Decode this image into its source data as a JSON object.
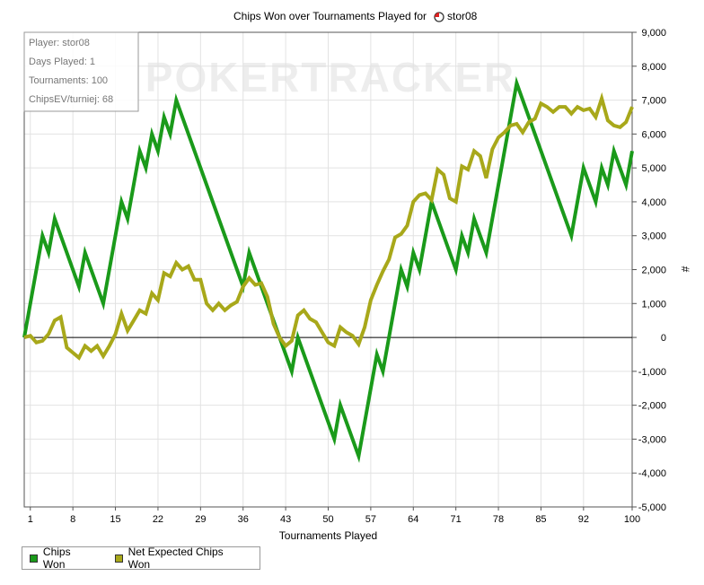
{
  "chart_data": {
    "type": "line",
    "title": "Chips Won over Tournaments Played for",
    "title_player": "stor08",
    "title_icon": "poker-site-icon",
    "xlabel": "Tournaments Played",
    "ylabel": "#",
    "watermark": "POKERTRACKER",
    "x_ticks": [
      1,
      8,
      15,
      22,
      29,
      36,
      43,
      50,
      57,
      64,
      71,
      78,
      85,
      92,
      100
    ],
    "x_tick_labels": [
      "1",
      "8",
      "15",
      "22",
      "29",
      "36",
      "43",
      "50",
      "57",
      "64",
      "71",
      "78",
      "85",
      "92",
      "100"
    ],
    "xlim": [
      0,
      100
    ],
    "ylim": [
      -5000,
      9000
    ],
    "y_ticks": [
      -5000,
      -4000,
      -3000,
      -2000,
      -1000,
      0,
      1000,
      2000,
      3000,
      4000,
      5000,
      6000,
      7000,
      8000,
      9000
    ],
    "y_tick_labels": [
      "-5,000",
      "-4,000",
      "-3,000",
      "-2,000",
      "-1,000",
      "0",
      "1,000",
      "2,000",
      "3,000",
      "4,000",
      "5,000",
      "6,000",
      "7,000",
      "8,000",
      "9,000"
    ],
    "info_box": [
      "Player: stor08",
      "Days Played: 1",
      "Tournaments: 100",
      "ChipsEV/turniej: 68"
    ],
    "legend_position": "bottom-left",
    "colors": {
      "chips_won": "#1a9a1a",
      "net_expected": "#a8a81a",
      "axis": "#000000",
      "grid": "#e2e2e2"
    },
    "series": [
      {
        "name": "Chips Won",
        "color": "#1a9a1a",
        "points": [
          [
            0,
            0
          ],
          [
            3,
            3000
          ],
          [
            4,
            2500
          ],
          [
            5,
            3500
          ],
          [
            9,
            1500
          ],
          [
            10,
            2500
          ],
          [
            13,
            1000
          ],
          [
            16,
            4000
          ],
          [
            17,
            3500
          ],
          [
            19,
            5500
          ],
          [
            20,
            5000
          ],
          [
            21,
            6000
          ],
          [
            22,
            5500
          ],
          [
            23,
            6500
          ],
          [
            24,
            6000
          ],
          [
            25,
            7000
          ],
          [
            36,
            1500
          ],
          [
            37,
            2500
          ],
          [
            44,
            -1000
          ],
          [
            45,
            0
          ],
          [
            51,
            -3000
          ],
          [
            52,
            -2000
          ],
          [
            55,
            -3500
          ],
          [
            58,
            -500
          ],
          [
            59,
            -1000
          ],
          [
            62,
            2000
          ],
          [
            63,
            1500
          ],
          [
            64,
            2500
          ],
          [
            65,
            2000
          ],
          [
            67,
            4000
          ],
          [
            71,
            2000
          ],
          [
            72,
            3000
          ],
          [
            73,
            2500
          ],
          [
            74,
            3500
          ],
          [
            76,
            2500
          ],
          [
            81,
            7500
          ],
          [
            90,
            3000
          ],
          [
            92,
            5000
          ],
          [
            94,
            4000
          ],
          [
            95,
            5000
          ],
          [
            96,
            4500
          ],
          [
            97,
            5500
          ],
          [
            99,
            4500
          ],
          [
            100,
            5500
          ]
        ]
      },
      {
        "name": "Net Expected Chips Won",
        "color": "#a8a81a",
        "points": [
          [
            0,
            0
          ],
          [
            1,
            50
          ],
          [
            2,
            -150
          ],
          [
            3,
            -100
          ],
          [
            4,
            100
          ],
          [
            5,
            500
          ],
          [
            6,
            600
          ],
          [
            7,
            -300
          ],
          [
            8,
            -450
          ],
          [
            9,
            -600
          ],
          [
            10,
            -250
          ],
          [
            11,
            -400
          ],
          [
            12,
            -250
          ],
          [
            13,
            -550
          ],
          [
            14,
            -250
          ],
          [
            15,
            100
          ],
          [
            16,
            700
          ],
          [
            17,
            200
          ],
          [
            18,
            500
          ],
          [
            19,
            800
          ],
          [
            20,
            700
          ],
          [
            21,
            1300
          ],
          [
            22,
            1100
          ],
          [
            23,
            1900
          ],
          [
            24,
            1800
          ],
          [
            25,
            2200
          ],
          [
            26,
            2000
          ],
          [
            27,
            2100
          ],
          [
            28,
            1700
          ],
          [
            29,
            1700
          ],
          [
            30,
            1000
          ],
          [
            31,
            800
          ],
          [
            32,
            1000
          ],
          [
            33,
            800
          ],
          [
            34,
            950
          ],
          [
            35,
            1050
          ],
          [
            36,
            1500
          ],
          [
            37,
            1750
          ],
          [
            38,
            1550
          ],
          [
            39,
            1600
          ],
          [
            40,
            1200
          ],
          [
            41,
            400
          ],
          [
            42,
            0
          ],
          [
            43,
            -250
          ],
          [
            44,
            -100
          ],
          [
            45,
            650
          ],
          [
            46,
            800
          ],
          [
            47,
            550
          ],
          [
            48,
            450
          ],
          [
            49,
            150
          ],
          [
            50,
            -150
          ],
          [
            51,
            -250
          ],
          [
            52,
            300
          ],
          [
            53,
            150
          ],
          [
            54,
            50
          ],
          [
            55,
            -200
          ],
          [
            56,
            300
          ],
          [
            57,
            1100
          ],
          [
            58,
            1550
          ],
          [
            59,
            1950
          ],
          [
            60,
            2300
          ],
          [
            61,
            2950
          ],
          [
            62,
            3050
          ],
          [
            63,
            3300
          ],
          [
            64,
            4000
          ],
          [
            65,
            4200
          ],
          [
            66,
            4250
          ],
          [
            67,
            4050
          ],
          [
            68,
            4950
          ],
          [
            69,
            4800
          ],
          [
            70,
            4100
          ],
          [
            71,
            4000
          ],
          [
            72,
            5050
          ],
          [
            73,
            4950
          ],
          [
            74,
            5500
          ],
          [
            75,
            5350
          ],
          [
            76,
            4700
          ],
          [
            77,
            5550
          ],
          [
            78,
            5900
          ],
          [
            79,
            6050
          ],
          [
            80,
            6250
          ],
          [
            81,
            6300
          ],
          [
            82,
            6050
          ],
          [
            83,
            6350
          ],
          [
            84,
            6450
          ],
          [
            85,
            6900
          ],
          [
            86,
            6800
          ],
          [
            87,
            6650
          ],
          [
            88,
            6800
          ],
          [
            89,
            6800
          ],
          [
            90,
            6600
          ],
          [
            91,
            6800
          ],
          [
            92,
            6700
          ],
          [
            93,
            6750
          ],
          [
            94,
            6500
          ],
          [
            95,
            7050
          ],
          [
            96,
            6400
          ],
          [
            97,
            6250
          ],
          [
            98,
            6200
          ],
          [
            99,
            6350
          ],
          [
            100,
            6800
          ]
        ]
      }
    ]
  }
}
